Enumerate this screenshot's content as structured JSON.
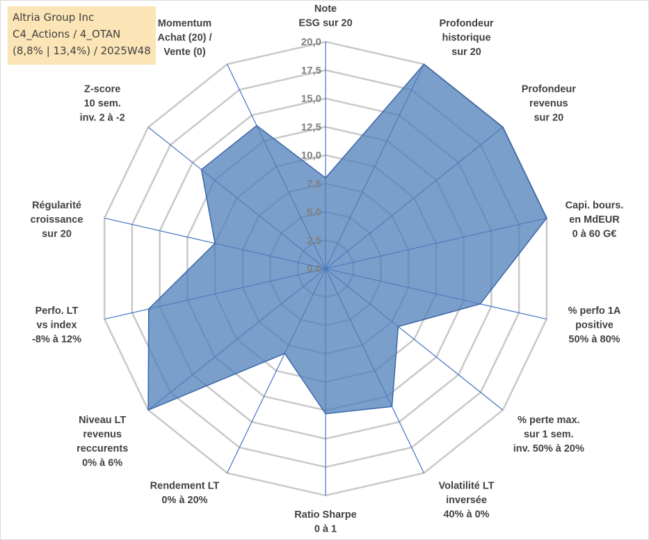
{
  "info": {
    "line1": "Altria Group Inc",
    "line2": "C4_Actions / 4_OTAN",
    "line3": "(8,8% | 13,4%) / 2025W48"
  },
  "colors": {
    "grid": "#c8c8c8",
    "spoke": "#4472c4",
    "fill": "#4f7fb9",
    "stroke": "#3a66a8",
    "info_bg": "#fbe5b6"
  },
  "chart_data": {
    "type": "radar",
    "title": "",
    "rmax": 20,
    "ticks": [
      "0,0",
      "2,5",
      "5,0",
      "7,5",
      "10,0",
      "12,5",
      "15,0",
      "17,5",
      "20,0"
    ],
    "tick_values": [
      0,
      2.5,
      5,
      7.5,
      10,
      12.5,
      15,
      17.5,
      20
    ],
    "axes": [
      {
        "label": [
          "Note",
          "ESG sur 20"
        ],
        "value": 8.0
      },
      {
        "label": [
          "Profondeur",
          "historique",
          "sur 20"
        ],
        "value": 20.0
      },
      {
        "label": [
          "Profondeur",
          "revenus",
          "sur 20"
        ],
        "value": 20.0
      },
      {
        "label": [
          "Capi. bours.",
          "en MdEUR",
          "0 à 60 G€"
        ],
        "value": 20.0
      },
      {
        "label": [
          "% perfo 1A",
          "positive",
          "50% à 80%"
        ],
        "value": 14.0
      },
      {
        "label": [
          "% perte max.",
          "sur 1 sem.",
          "inv. 50% à 20%"
        ],
        "value": 8.2
      },
      {
        "label": [
          "Volatilité LT",
          "inversée",
          "40% à 0%"
        ],
        "value": 13.5
      },
      {
        "label": [
          "Ratio Sharpe",
          "0 à 1"
        ],
        "value": 12.8
      },
      {
        "label": [
          "Rendement LT",
          "0% à 20%"
        ],
        "value": 8.3
      },
      {
        "label": [
          "Niveau LT",
          "revenus",
          "reccurents",
          "0% à 6%"
        ],
        "value": 20.0
      },
      {
        "label": [
          "Perfo. LT",
          "vs index",
          "-8% à 12%"
        ],
        "value": 16.0
      },
      {
        "label": [
          "Régularité",
          "croissance",
          "sur 20"
        ],
        "value": 10.0
      },
      {
        "label": [
          "Z-score",
          "10 sem.",
          "inv. 2 à -2"
        ],
        "value": 14.0
      },
      {
        "label": [
          "Momentum",
          "Achat (20) /",
          "Vente (0)"
        ],
        "value": 14.0
      }
    ]
  }
}
